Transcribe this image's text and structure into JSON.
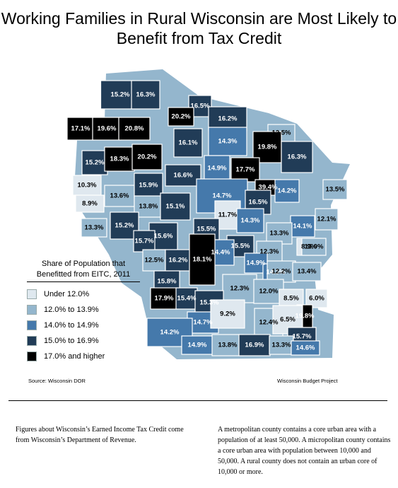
{
  "title": "Working Families in Rural Wisconsin are Most Likely to Benefit from Tax Credit",
  "legend": {
    "title": "Share of Population that Benefitted from EITC, 2011",
    "items": [
      {
        "label": "Under 12.0%",
        "color": "#dfe8ef"
      },
      {
        "label": "12.0% to 13.9%",
        "color": "#94b6cd"
      },
      {
        "label": "14.0% to 14.9%",
        "color": "#4579ab"
      },
      {
        "label": "15.0% to 16.9%",
        "color": "#213c57"
      },
      {
        "label": "17.0% and higher",
        "color": "#000000"
      }
    ]
  },
  "map_data": {
    "counties": [
      {
        "value": "15.2%",
        "cls": 3
      },
      {
        "value": "16.3%",
        "cls": 3
      },
      {
        "value": "16.5%",
        "cls": 3
      },
      {
        "value": "20.2%",
        "cls": 4
      },
      {
        "value": "16.2%",
        "cls": 3
      },
      {
        "value": "17.1%",
        "cls": 4
      },
      {
        "value": "19.6%",
        "cls": 4
      },
      {
        "value": "20.8%",
        "cls": 4
      },
      {
        "value": "12.5%",
        "cls": 1
      },
      {
        "value": "19.8%",
        "cls": 4
      },
      {
        "value": "16.1%",
        "cls": 3
      },
      {
        "value": "14.3%",
        "cls": 2
      },
      {
        "value": "16.3%",
        "cls": 3
      },
      {
        "value": "15.2%",
        "cls": 3
      },
      {
        "value": "18.3%",
        "cls": 4
      },
      {
        "value": "20.2%",
        "cls": 4
      },
      {
        "value": "14.9%",
        "cls": 2
      },
      {
        "value": "17.7%",
        "cls": 4
      },
      {
        "value": "16.6%",
        "cls": 3
      },
      {
        "value": "10.3%",
        "cls": 0
      },
      {
        "value": "13.6%",
        "cls": 1
      },
      {
        "value": "15.9%",
        "cls": 3
      },
      {
        "value": "14.7%",
        "cls": 2
      },
      {
        "value": "39.4%",
        "cls": 4
      },
      {
        "value": "14.2%",
        "cls": 2
      },
      {
        "value": "13.5%",
        "cls": 1
      },
      {
        "value": "8.9%",
        "cls": 0
      },
      {
        "value": "13.8%",
        "cls": 1
      },
      {
        "value": "15.1%",
        "cls": 3
      },
      {
        "value": "16.5%",
        "cls": 3
      },
      {
        "value": "11.7%",
        "cls": 0
      },
      {
        "value": "12.1%",
        "cls": 1
      },
      {
        "value": "13.3%",
        "cls": 1
      },
      {
        "value": "15.2%",
        "cls": 3
      },
      {
        "value": "15.5%",
        "cls": 3
      },
      {
        "value": "14.3%",
        "cls": 2
      },
      {
        "value": "14.1%",
        "cls": 2
      },
      {
        "value": "15.6%",
        "cls": 3
      },
      {
        "value": "13.3%",
        "cls": 1
      },
      {
        "value": "15.7%",
        "cls": 3
      },
      {
        "value": "15.5%",
        "cls": 3
      },
      {
        "value": "8.9%",
        "cls": 0
      },
      {
        "value": "13.0%",
        "cls": 1
      },
      {
        "value": "14.4%",
        "cls": 2
      },
      {
        "value": "12.3%",
        "cls": 1
      },
      {
        "value": "12.5%",
        "cls": 1
      },
      {
        "value": "16.2%",
        "cls": 3
      },
      {
        "value": "18.1%",
        "cls": 4
      },
      {
        "value": "14.9%",
        "cls": 2
      },
      {
        "value": "14.3%",
        "cls": 2
      },
      {
        "value": "12.2%",
        "cls": 1
      },
      {
        "value": "13.4%",
        "cls": 1
      },
      {
        "value": "15.8%",
        "cls": 3
      },
      {
        "value": "12.3%",
        "cls": 1
      },
      {
        "value": "12.0%",
        "cls": 1
      },
      {
        "value": "8.5%",
        "cls": 0
      },
      {
        "value": "6.0%",
        "cls": 0
      },
      {
        "value": "17.9%",
        "cls": 4
      },
      {
        "value": "15.4%",
        "cls": 3
      },
      {
        "value": "15.3%",
        "cls": 3
      },
      {
        "value": "14.7%",
        "cls": 2
      },
      {
        "value": "9.2%",
        "cls": 0
      },
      {
        "value": "19.8%",
        "cls": 4
      },
      {
        "value": "14.2%",
        "cls": 2
      },
      {
        "value": "12.4%",
        "cls": 1
      },
      {
        "value": "6.5%",
        "cls": 0
      },
      {
        "value": "15.7%",
        "cls": 3
      },
      {
        "value": "14.9%",
        "cls": 2
      },
      {
        "value": "13.8%",
        "cls": 1
      },
      {
        "value": "16.9%",
        "cls": 3
      },
      {
        "value": "13.3%",
        "cls": 1
      },
      {
        "value": "14.6%",
        "cls": 2
      }
    ]
  },
  "source": "Source: Wisconsin DOR",
  "credit": "Wisconsin Budget Project",
  "note_left": "Figures about Wisconsin’s Earned Income Tax Credit come from Wisconsin’s Department of Revenue.",
  "note_right": "A metropolitan county contains a core urban area with a population of at least 50,000. A micropolitan county contains a core urban area with population between 10,000 and 50,000. A rural county does not contain an urban core of 10,000 or more."
}
